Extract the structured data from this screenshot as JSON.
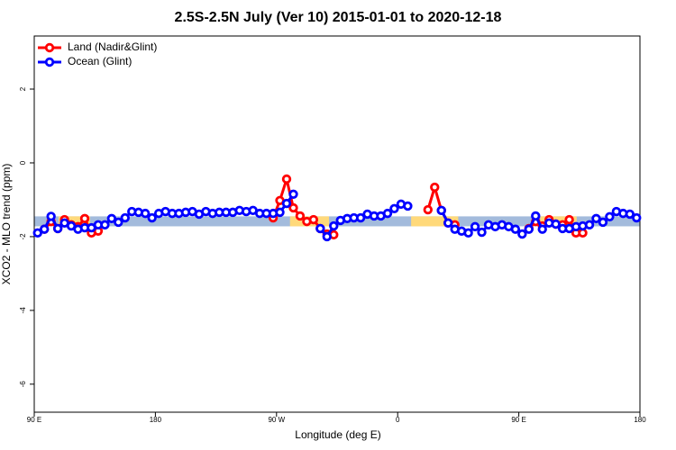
{
  "chart_data": {
    "type": "line",
    "title": "2.5S-2.5N July (Ver 10)   2015-01-01 to 2020-12-18",
    "x_label": "Longitude (deg E)",
    "y_label": "XCO2 - MLO trend (ppm)",
    "xlim": [
      90,
      540
    ],
    "ylim": [
      -6.76,
      3.44
    ],
    "xticks": [
      {
        "value": 90,
        "label": "90 E"
      },
      {
        "value": 180,
        "label": "180"
      },
      {
        "value": 270,
        "label": "90 W"
      },
      {
        "value": 360,
        "label": "0"
      },
      {
        "value": 450,
        "label": "90 E"
      },
      {
        "value": 540,
        "label": "180"
      }
    ],
    "yticks": [
      2,
      0,
      -2,
      -4,
      -6
    ],
    "legend": "top-left",
    "band_ylim": [
      -1.72,
      -1.45
    ],
    "surface_bands": [
      {
        "start": 90,
        "end": 540,
        "color": "#a3bbdc"
      },
      {
        "start": 108,
        "end": 131.5,
        "color": "#ffd97a"
      },
      {
        "start": 280,
        "end": 309,
        "color": "#ffd97a"
      },
      {
        "start": 370,
        "end": 405,
        "color": "#ffd97a"
      },
      {
        "start": 466,
        "end": 493,
        "color": "#ffd97a"
      }
    ],
    "x": [
      92.5,
      97.5,
      102.5,
      107.5,
      112.5,
      117.5,
      122.5,
      127.5,
      132.5,
      137.5,
      142.5,
      147.5,
      152.5,
      157.5,
      162.5,
      167.5,
      172.5,
      177.5,
      182.5,
      187.5,
      192.5,
      197.5,
      202.5,
      207.5,
      212.5,
      217.5,
      222.5,
      227.5,
      232.5,
      237.5,
      242.5,
      247.5,
      252.5,
      257.5,
      262.5,
      267.5,
      272.5,
      277.5,
      282.5,
      287.5,
      292.5,
      297.5,
      302.5,
      307.5,
      312.5,
      317.5,
      322.5,
      327.5,
      332.5,
      337.5,
      342.5,
      347.5,
      352.5,
      357.5,
      362.5,
      367.5,
      372.5,
      377.5,
      382.5,
      387.5,
      392.5,
      397.5,
      402.5,
      407.5,
      412.5,
      417.5,
      422.5,
      427.5,
      432.5,
      437.5,
      442.5,
      447.5,
      452.5,
      457.5,
      462.5,
      467.5,
      472.5,
      477.5,
      482.5,
      487.5,
      492.5,
      497.5,
      502.5,
      507.5,
      512.5,
      517.5,
      522.5,
      527.5,
      532.5,
      537.5
    ],
    "series": [
      {
        "name": "Land (Nadir&Glint)",
        "color": "#ff0000",
        "values": [
          null,
          -1.8,
          -1.59,
          -1.78,
          -1.54,
          -1.68,
          -1.73,
          -1.51,
          -1.9,
          -1.85,
          null,
          null,
          null,
          null,
          null,
          null,
          null,
          null,
          null,
          null,
          null,
          null,
          null,
          null,
          null,
          null,
          null,
          null,
          null,
          null,
          null,
          null,
          null,
          null,
          null,
          -1.49,
          -1.02,
          -0.44,
          -1.22,
          -1.44,
          -1.59,
          -1.54,
          -1.78,
          -1.93,
          -1.95,
          null,
          null,
          null,
          null,
          null,
          null,
          null,
          null,
          null,
          null,
          null,
          null,
          null,
          -1.27,
          -0.66,
          -1.29,
          -1.63,
          -1.68,
          null,
          null,
          null,
          null,
          null,
          null,
          null,
          null,
          null,
          null,
          -1.78,
          -1.59,
          -1.71,
          -1.54,
          -1.66,
          -1.68,
          -1.54,
          -1.9,
          -1.9,
          null,
          null,
          null,
          null,
          null,
          null,
          null,
          null
        ]
      },
      {
        "name": "Ocean (Glint)",
        "color": "#0000ff",
        "values": [
          -1.9,
          -1.8,
          -1.45,
          -1.78,
          -1.63,
          -1.71,
          -1.8,
          -1.76,
          -1.76,
          -1.68,
          -1.68,
          -1.51,
          -1.61,
          -1.49,
          -1.32,
          -1.34,
          -1.37,
          -1.49,
          -1.37,
          -1.32,
          -1.37,
          -1.37,
          -1.34,
          -1.32,
          -1.39,
          -1.32,
          -1.37,
          -1.34,
          -1.34,
          -1.34,
          -1.29,
          -1.32,
          -1.29,
          -1.37,
          -1.37,
          -1.37,
          -1.34,
          -1.1,
          -0.85,
          null,
          null,
          null,
          -1.78,
          -2.0,
          -1.71,
          -1.56,
          -1.51,
          -1.49,
          -1.49,
          -1.39,
          -1.44,
          -1.44,
          -1.37,
          -1.24,
          -1.12,
          -1.17,
          null,
          null,
          null,
          null,
          -1.29,
          -1.63,
          -1.8,
          -1.85,
          -1.9,
          -1.73,
          -1.88,
          -1.68,
          -1.73,
          -1.68,
          -1.73,
          -1.8,
          -1.93,
          -1.8,
          -1.44,
          -1.8,
          -1.63,
          -1.66,
          -1.78,
          -1.78,
          -1.73,
          -1.71,
          -1.68,
          -1.51,
          -1.61,
          -1.46,
          -1.32,
          -1.37,
          -1.39,
          -1.49
        ]
      }
    ]
  }
}
